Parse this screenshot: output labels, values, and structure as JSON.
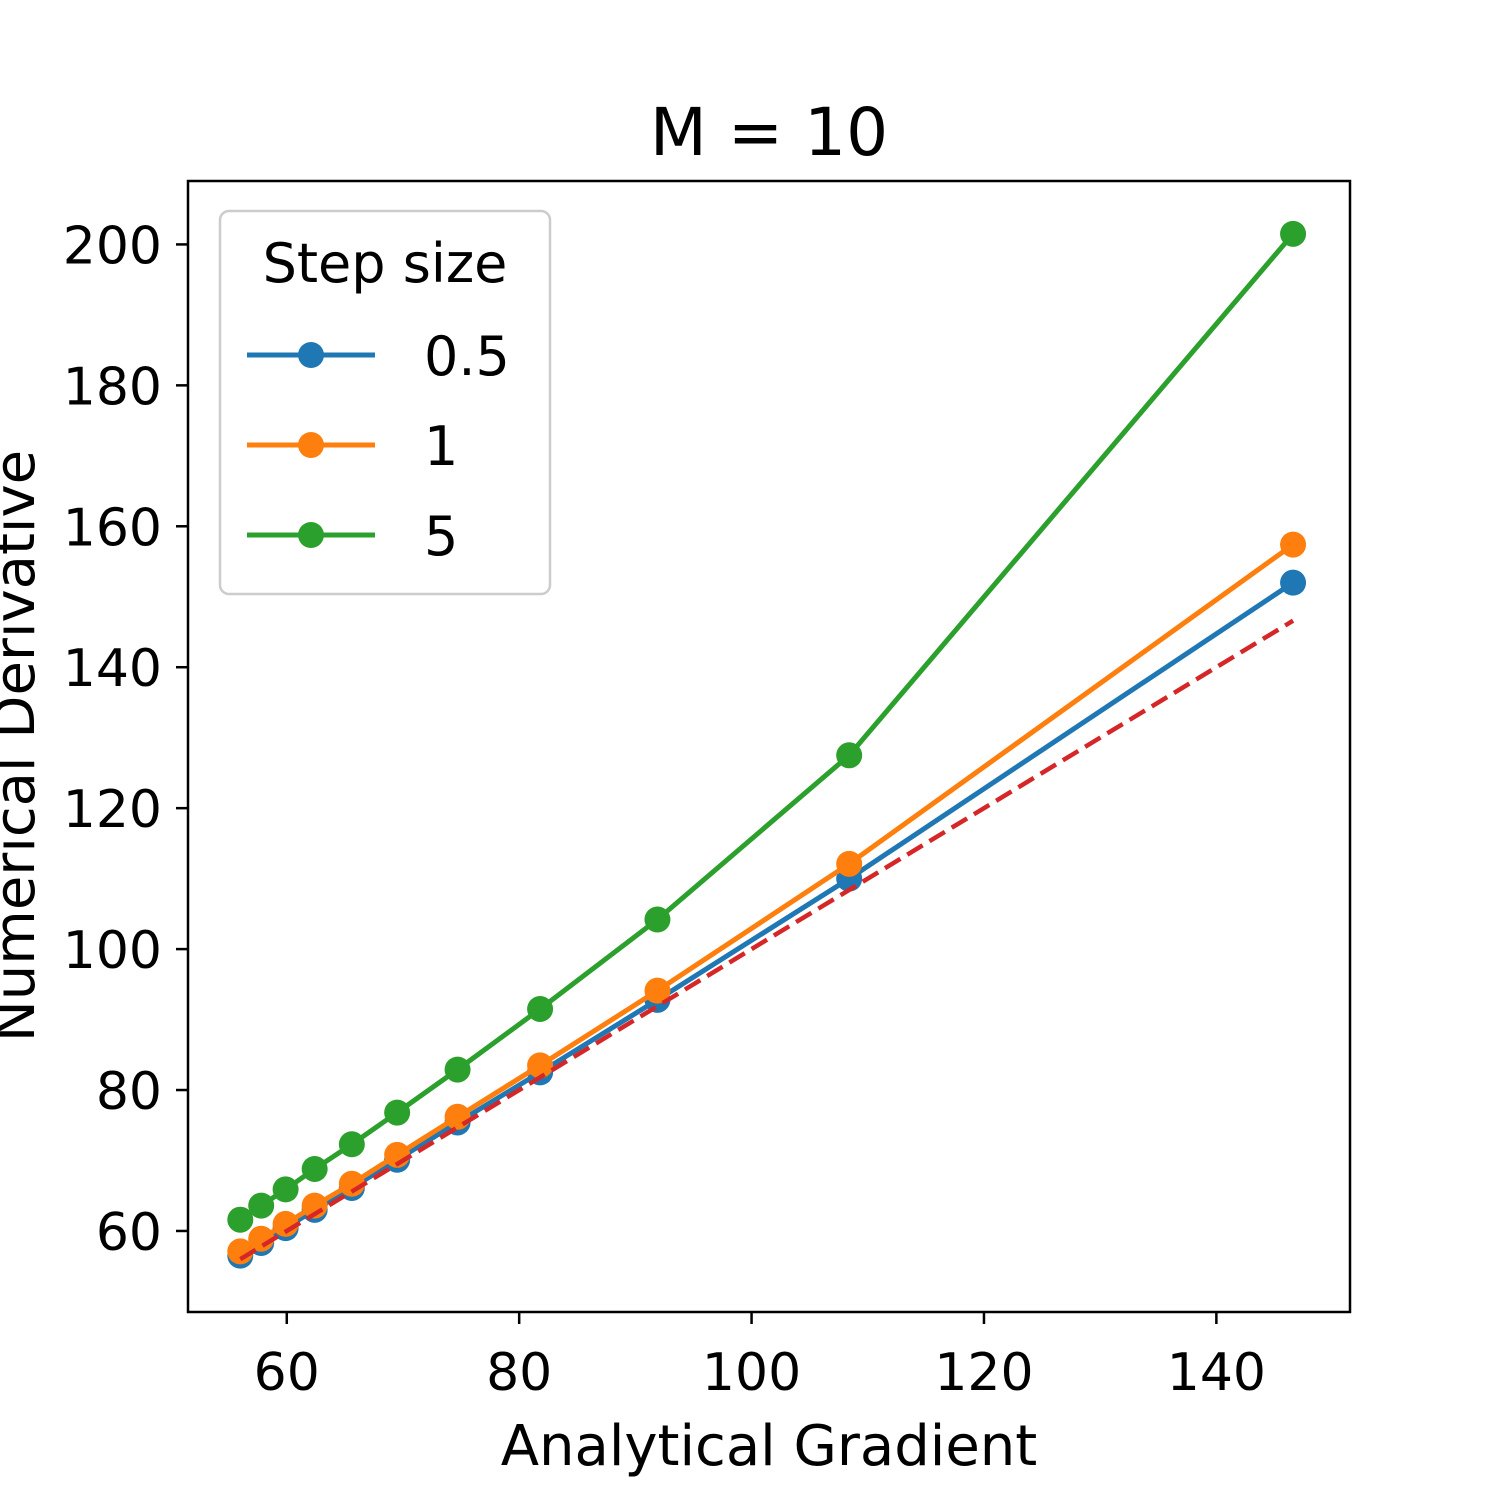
{
  "chart_data": {
    "type": "line",
    "title": "M = 10",
    "xlabel": "Analytical Gradient",
    "ylabel": "Numerical Derivative",
    "xlim": [
      51.5,
      151.5
    ],
    "ylim": [
      48.5,
      209
    ],
    "xticks": [
      60,
      80,
      100,
      120,
      140
    ],
    "yticks": [
      60,
      80,
      100,
      120,
      140,
      160,
      180,
      200
    ],
    "grid": false,
    "legend": {
      "title": "Step size",
      "placement": "top-left"
    },
    "x": [
      56.0,
      57.8,
      59.9,
      62.4,
      65.6,
      69.5,
      74.7,
      81.8,
      91.9,
      108.4,
      146.6
    ],
    "series": [
      {
        "name": "0.5",
        "color": "#1f77b4",
        "marker": "circle",
        "values": [
          56.5,
          58.3,
          60.4,
          63.0,
          66.1,
          70.1,
          75.4,
          82.5,
          92.8,
          110.0,
          152.0
        ]
      },
      {
        "name": "1",
        "color": "#ff7f0e",
        "marker": "circle",
        "values": [
          57.1,
          58.9,
          61.0,
          63.6,
          66.7,
          70.8,
          76.2,
          83.5,
          94.1,
          112.1,
          157.4
        ]
      },
      {
        "name": "5",
        "color": "#2ca02c",
        "marker": "circle",
        "values": [
          61.6,
          63.6,
          65.9,
          68.8,
          72.3,
          76.8,
          82.9,
          91.5,
          104.2,
          127.5,
          201.5
        ]
      }
    ],
    "reference_line": {
      "color": "#d62728",
      "style": "dashed",
      "x": [
        56.0,
        146.6
      ],
      "y": [
        56.0,
        146.6
      ]
    }
  }
}
